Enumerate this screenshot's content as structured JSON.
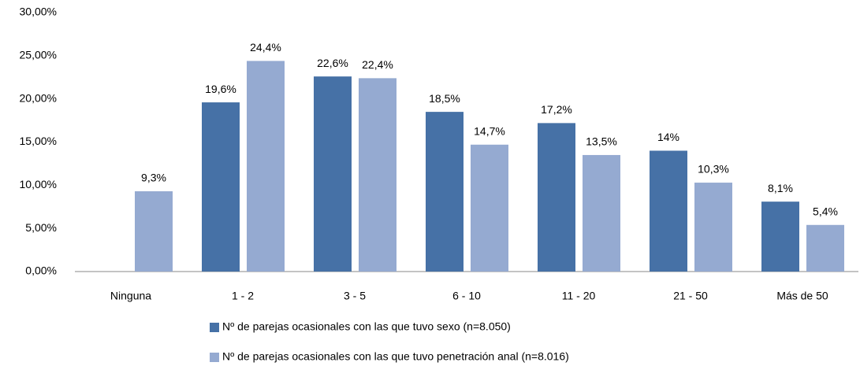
{
  "chart_data": {
    "type": "bar",
    "categories": [
      "Ninguna",
      "1 - 2",
      "3 - 5",
      "6 - 10",
      "11 - 20",
      "21 - 50",
      "Más de 50"
    ],
    "series": [
      {
        "name": "Nº de parejas ocasionales con las que tuvo sexo (n=8.050)",
        "color": "#4671a6",
        "values": [
          null,
          19.6,
          22.6,
          18.5,
          17.2,
          14,
          8.1
        ],
        "value_labels": [
          null,
          "19,6%",
          "22,6%",
          "18,5%",
          "17,2%",
          "14%",
          "8,1%"
        ]
      },
      {
        "name": "Nº de parejas ocasionales con las que tuvo penetración anal (n=8.016)",
        "color": "#95aad1",
        "values": [
          9.3,
          24.4,
          22.4,
          14.7,
          13.5,
          10.3,
          5.4
        ],
        "value_labels": [
          "9,3%",
          "24,4%",
          "22,4%",
          "14,7%",
          "13,5%",
          "10,3%",
          "5,4%"
        ]
      }
    ],
    "ylim": [
      0,
      30
    ],
    "yticks": [
      {
        "value": 0,
        "label": "0,00%"
      },
      {
        "value": 5,
        "label": "5,00%"
      },
      {
        "value": 10,
        "label": "10,00%"
      },
      {
        "value": 15,
        "label": "15,00%"
      },
      {
        "value": 20,
        "label": "20,00%"
      },
      {
        "value": 25,
        "label": "25,00%"
      },
      {
        "value": 30,
        "label": "30,00%"
      }
    ],
    "grid": false
  }
}
